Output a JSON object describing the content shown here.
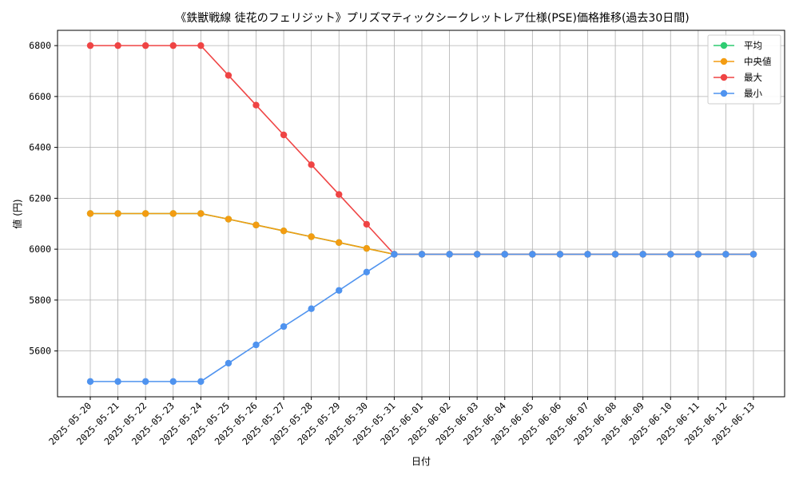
{
  "chart_data": {
    "type": "line",
    "title": "《鉄獣戦線 徒花のフェリジット》プリズマティックシークレットレア仕様(PSE)価格推移(過去30日間)",
    "xlabel": "日付",
    "ylabel": "値 (円)",
    "ylim": [
      5420,
      6860
    ],
    "yticks": [
      5600,
      5800,
      6000,
      6200,
      6400,
      6600,
      6800
    ],
    "ytick_labels": [
      "5600",
      "5800",
      "6000",
      "6200",
      "6400",
      "6600",
      "6800"
    ],
    "grid": true,
    "legend_position": "top-right",
    "categories": [
      "2025-05-20",
      "2025-05-21",
      "2025-05-22",
      "2025-05-23",
      "2025-05-24",
      "2025-05-25",
      "2025-05-26",
      "2025-05-27",
      "2025-05-28",
      "2025-05-29",
      "2025-05-30",
      "2025-05-31",
      "2025-06-01",
      "2025-06-02",
      "2025-06-03",
      "2025-06-04",
      "2025-06-05",
      "2025-06-06",
      "2025-06-07",
      "2025-06-08",
      "2025-06-09",
      "2025-06-10",
      "2025-06-11",
      "2025-06-12",
      "2025-06-13"
    ],
    "series": [
      {
        "name": "平均",
        "color": "#2ecc71",
        "values": [
          6140,
          6140,
          6140,
          6140,
          6140,
          6118,
          6095,
          6072,
          6049,
          6026,
          6003,
          5980,
          5980,
          5980,
          5980,
          5980,
          5980,
          5980,
          5980,
          5980,
          5980,
          5980,
          5980,
          5980,
          5980
        ]
      },
      {
        "name": "中央値",
        "color": "#f39c12",
        "values": [
          6140,
          6140,
          6140,
          6140,
          6140,
          6118,
          6095,
          6072,
          6049,
          6026,
          6003,
          5980,
          5980,
          5980,
          5980,
          5980,
          5980,
          5980,
          5980,
          5980,
          5980,
          5980,
          5980,
          5980,
          5980
        ]
      },
      {
        "name": "最大",
        "color": "#ef4444",
        "values": [
          6800,
          6800,
          6800,
          6800,
          6800,
          6683,
          6566,
          6449,
          6332,
          6215,
          6098,
          5980,
          5980,
          5980,
          5980,
          5980,
          5980,
          5980,
          5980,
          5980,
          5980,
          5980,
          5980,
          5980,
          5980
        ]
      },
      {
        "name": "最小",
        "color": "#4f93ef",
        "values": [
          5480,
          5480,
          5480,
          5480,
          5480,
          5552,
          5624,
          5696,
          5766,
          5838,
          5910,
          5980,
          5980,
          5980,
          5980,
          5980,
          5980,
          5980,
          5980,
          5980,
          5980,
          5980,
          5980,
          5980,
          5980
        ]
      }
    ]
  }
}
